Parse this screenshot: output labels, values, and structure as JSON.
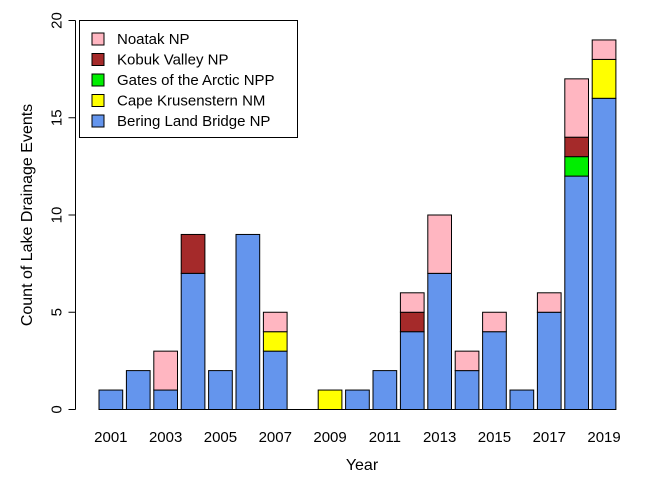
{
  "chart_data": {
    "type": "bar",
    "stacked": true,
    "title": "",
    "xlabel": "Year",
    "ylabel": "Count of Lake Drainage Events",
    "ylim": [
      0,
      20
    ],
    "yticks": [
      0,
      5,
      10,
      15,
      20
    ],
    "grid": false,
    "legend_position": "top-left",
    "categories": [
      "2001",
      "2002",
      "2003",
      "2004",
      "2005",
      "2006",
      "2007",
      "2008",
      "2009",
      "2010",
      "2011",
      "2012",
      "2013",
      "2014",
      "2015",
      "2016",
      "2017",
      "2018",
      "2019"
    ],
    "xtick_labels": [
      "2001",
      "",
      "2003",
      "",
      "2005",
      "",
      "2007",
      "",
      "2009",
      "",
      "2011",
      "",
      "2013",
      "",
      "2015",
      "",
      "2017",
      "",
      "2019"
    ],
    "series": [
      {
        "name": "Bering Land Bridge NP",
        "color": "#6495ED",
        "values": [
          1,
          2,
          1,
          7,
          2,
          9,
          3,
          0,
          0,
          1,
          2,
          4,
          7,
          2,
          4,
          1,
          5,
          12,
          16
        ]
      },
      {
        "name": "Cape Krusenstern NM",
        "color": "#FFFF00",
        "values": [
          0,
          0,
          0,
          0,
          0,
          0,
          1,
          0,
          1,
          0,
          0,
          0,
          0,
          0,
          0,
          0,
          0,
          0,
          2
        ]
      },
      {
        "name": "Gates of the Arctic NPP",
        "color": "#00EE00",
        "values": [
          0,
          0,
          0,
          0,
          0,
          0,
          0,
          0,
          0,
          0,
          0,
          0,
          0,
          0,
          0,
          0,
          0,
          1,
          0
        ]
      },
      {
        "name": "Kobuk Valley NP",
        "color": "#A52A2A",
        "values": [
          0,
          0,
          0,
          2,
          0,
          0,
          0,
          0,
          0,
          0,
          0,
          1,
          0,
          0,
          0,
          0,
          0,
          1,
          0
        ]
      },
      {
        "name": "Noatak NP",
        "color": "#FFB6C1",
        "values": [
          0,
          0,
          2,
          0,
          0,
          0,
          1,
          0,
          0,
          0,
          0,
          1,
          3,
          1,
          1,
          0,
          1,
          3,
          1
        ]
      }
    ],
    "legend_order": [
      "Noatak NP",
      "Kobuk Valley NP",
      "Gates of the Arctic NPP",
      "Cape Krusenstern NM",
      "Bering Land Bridge NP"
    ]
  }
}
